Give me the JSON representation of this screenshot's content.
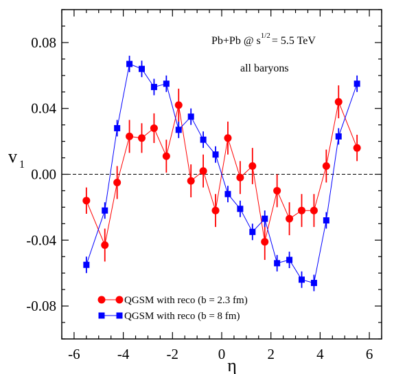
{
  "chart_data": {
    "type": "scatter",
    "xlabel": "η",
    "ylabel": "v",
    "ylabel_subscript": "1",
    "xlim": [
      -6.5,
      6.5
    ],
    "ylim": [
      -0.1,
      0.1
    ],
    "x_ticks": [
      -6,
      -4,
      -2,
      0,
      2,
      4,
      6
    ],
    "x_tick_labels": [
      "-6",
      "-4",
      "-2",
      "0",
      "2",
      "4",
      "6"
    ],
    "y_ticks": [
      -0.08,
      -0.04,
      0.0,
      0.04,
      0.08
    ],
    "y_tick_labels": [
      "-0.08",
      "-0.04",
      "0.00",
      "0.04",
      "0.08"
    ],
    "zero_line": "dashed",
    "annotation": {
      "line1_prefix": "Pb+Pb @ s",
      "line1_sup": "1/2",
      "line1_suffix": "= 5.5 TeV",
      "line2": "all baryons"
    },
    "legend_position": "bottom-left",
    "series": [
      {
        "name": "QGSM with reco (b = 2.3 fm)",
        "color": "#ff0000",
        "marker": "circle",
        "x": [
          -5.5,
          -4.75,
          -4.25,
          -3.75,
          -3.25,
          -2.75,
          -2.25,
          -1.75,
          -1.25,
          -0.75,
          -0.25,
          0.25,
          0.75,
          1.25,
          1.75,
          2.25,
          2.75,
          3.25,
          3.75,
          4.25,
          4.75,
          5.5
        ],
        "y": [
          -0.016,
          -0.043,
          -0.005,
          0.023,
          0.022,
          0.028,
          0.011,
          0.042,
          -0.004,
          0.002,
          -0.022,
          0.022,
          -0.002,
          0.005,
          -0.041,
          -0.01,
          -0.027,
          -0.022,
          -0.022,
          0.005,
          0.044,
          0.016
        ],
        "err": [
          0.008,
          0.01,
          0.01,
          0.01,
          0.009,
          0.009,
          0.01,
          0.01,
          0.01,
          0.01,
          0.01,
          0.01,
          0.01,
          0.011,
          0.011,
          0.01,
          0.01,
          0.01,
          0.01,
          0.01,
          0.01,
          0.008
        ]
      },
      {
        "name": "QGSM with reco (b = 8 fm)",
        "color": "#0000ff",
        "marker": "square",
        "x": [
          -5.5,
          -4.75,
          -4.25,
          -3.75,
          -3.25,
          -2.75,
          -2.25,
          -1.75,
          -1.25,
          -0.75,
          -0.25,
          0.25,
          0.75,
          1.25,
          1.75,
          2.25,
          2.75,
          3.25,
          3.75,
          4.25,
          4.75,
          5.5
        ],
        "y": [
          -0.055,
          -0.022,
          0.028,
          0.067,
          0.064,
          0.053,
          0.055,
          0.027,
          0.035,
          0.021,
          0.012,
          -0.012,
          -0.021,
          -0.035,
          -0.027,
          -0.054,
          -0.052,
          -0.064,
          -0.066,
          -0.028,
          0.023,
          0.055
        ],
        "err": [
          0.005,
          0.005,
          0.005,
          0.005,
          0.005,
          0.005,
          0.005,
          0.005,
          0.005,
          0.005,
          0.005,
          0.005,
          0.005,
          0.005,
          0.005,
          0.005,
          0.005,
          0.005,
          0.005,
          0.005,
          0.005,
          0.005
        ]
      }
    ]
  }
}
